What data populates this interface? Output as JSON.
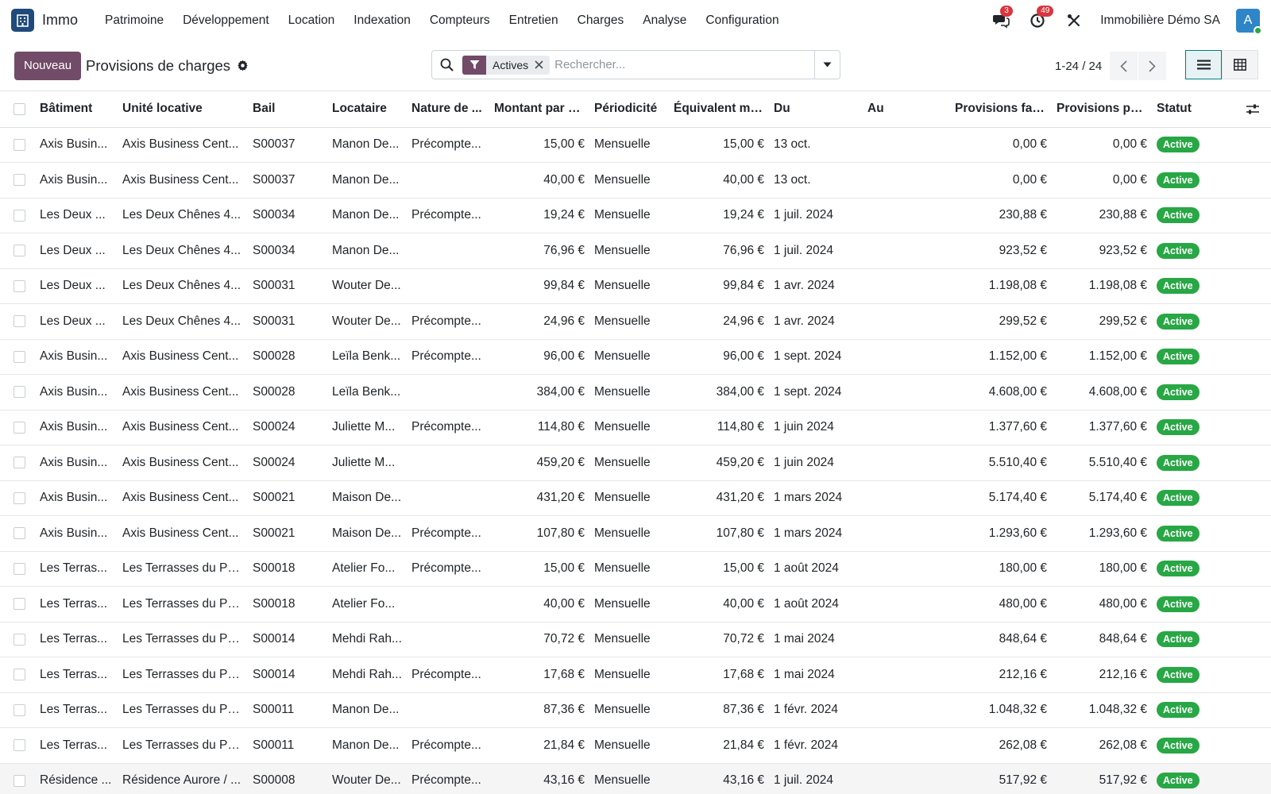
{
  "app": {
    "name": "Immo",
    "icon": "building-icon",
    "brand_color": "#1f4a7c"
  },
  "menu": [
    "Patrimoine",
    "Développement",
    "Location",
    "Indexation",
    "Compteurs",
    "Entretien",
    "Charges",
    "Analyse",
    "Configuration"
  ],
  "nav": {
    "messages_count": "3",
    "activities_count": "49",
    "company": "Immobilière Démo SA",
    "avatar_letter": "A"
  },
  "control": {
    "new_label": "Nouveau",
    "title": "Provisions de charges",
    "facet_label": "Actives",
    "search_placeholder": "Rechercher...",
    "pager": "1-24 / 24"
  },
  "colors": {
    "primary": "#714b67",
    "success": "#28a745",
    "danger": "#d9363e",
    "accent": "#017e84"
  },
  "table": {
    "columns": [
      "Bâtiment",
      "Unité locative",
      "Bail",
      "Locataire",
      "Nature de ...",
      "Montant par p...",
      "Périodicité",
      "Équivalent me...",
      "Du",
      "Au",
      "Provisions fac...",
      "Provisions pa...",
      "Statut"
    ],
    "rows": [
      [
        "Axis Busin...",
        "Axis Business Cent...",
        "S00037",
        "Manon De...",
        "Précompte...",
        "15,00 €",
        "Mensuelle",
        "15,00 €",
        "13 oct.",
        "",
        "0,00 €",
        "0,00 €",
        "Active"
      ],
      [
        "Axis Busin...",
        "Axis Business Cent...",
        "S00037",
        "Manon De...",
        "",
        "40,00 €",
        "Mensuelle",
        "40,00 €",
        "13 oct.",
        "",
        "0,00 €",
        "0,00 €",
        "Active"
      ],
      [
        "Les Deux ...",
        "Les Deux Chênes 4...",
        "S00034",
        "Manon De...",
        "Précompte...",
        "19,24 €",
        "Mensuelle",
        "19,24 €",
        "1 juil. 2024",
        "",
        "230,88 €",
        "230,88 €",
        "Active"
      ],
      [
        "Les Deux ...",
        "Les Deux Chênes 4...",
        "S00034",
        "Manon De...",
        "",
        "76,96 €",
        "Mensuelle",
        "76,96 €",
        "1 juil. 2024",
        "",
        "923,52 €",
        "923,52 €",
        "Active"
      ],
      [
        "Les Deux ...",
        "Les Deux Chênes 4...",
        "S00031",
        "Wouter De...",
        "",
        "99,84 €",
        "Mensuelle",
        "99,84 €",
        "1 avr. 2024",
        "",
        "1.198,08 €",
        "1.198,08 €",
        "Active"
      ],
      [
        "Les Deux ...",
        "Les Deux Chênes 4...",
        "S00031",
        "Wouter De...",
        "Précompte...",
        "24,96 €",
        "Mensuelle",
        "24,96 €",
        "1 avr. 2024",
        "",
        "299,52 €",
        "299,52 €",
        "Active"
      ],
      [
        "Axis Busin...",
        "Axis Business Cent...",
        "S00028",
        "Leïla Benk...",
        "Précompte...",
        "96,00 €",
        "Mensuelle",
        "96,00 €",
        "1 sept. 2024",
        "",
        "1.152,00 €",
        "1.152,00 €",
        "Active"
      ],
      [
        "Axis Busin...",
        "Axis Business Cent...",
        "S00028",
        "Leïla Benk...",
        "",
        "384,00 €",
        "Mensuelle",
        "384,00 €",
        "1 sept. 2024",
        "",
        "4.608,00 €",
        "4.608,00 €",
        "Active"
      ],
      [
        "Axis Busin...",
        "Axis Business Cent...",
        "S00024",
        "Juliette M...",
        "Précompte...",
        "114,80 €",
        "Mensuelle",
        "114,80 €",
        "1 juin 2024",
        "",
        "1.377,60 €",
        "1.377,60 €",
        "Active"
      ],
      [
        "Axis Busin...",
        "Axis Business Cent...",
        "S00024",
        "Juliette M...",
        "",
        "459,20 €",
        "Mensuelle",
        "459,20 €",
        "1 juin 2024",
        "",
        "5.510,40 €",
        "5.510,40 €",
        "Active"
      ],
      [
        "Axis Busin...",
        "Axis Business Cent...",
        "S00021",
        "Maison De...",
        "",
        "431,20 €",
        "Mensuelle",
        "431,20 €",
        "1 mars 2024",
        "",
        "5.174,40 €",
        "5.174,40 €",
        "Active"
      ],
      [
        "Axis Busin...",
        "Axis Business Cent...",
        "S00021",
        "Maison De...",
        "Précompte...",
        "107,80 €",
        "Mensuelle",
        "107,80 €",
        "1 mars 2024",
        "",
        "1.293,60 €",
        "1.293,60 €",
        "Active"
      ],
      [
        "Les Terras...",
        "Les Terrasses du Pa...",
        "S00018",
        "Atelier Fo...",
        "Précompte...",
        "15,00 €",
        "Mensuelle",
        "15,00 €",
        "1 août 2024",
        "",
        "180,00 €",
        "180,00 €",
        "Active"
      ],
      [
        "Les Terras...",
        "Les Terrasses du Pa...",
        "S00018",
        "Atelier Fo...",
        "",
        "40,00 €",
        "Mensuelle",
        "40,00 €",
        "1 août 2024",
        "",
        "480,00 €",
        "480,00 €",
        "Active"
      ],
      [
        "Les Terras...",
        "Les Terrasses du Pa...",
        "S00014",
        "Mehdi Rah...",
        "",
        "70,72 €",
        "Mensuelle",
        "70,72 €",
        "1 mai 2024",
        "",
        "848,64 €",
        "848,64 €",
        "Active"
      ],
      [
        "Les Terras...",
        "Les Terrasses du Pa...",
        "S00014",
        "Mehdi Rah...",
        "Précompte...",
        "17,68 €",
        "Mensuelle",
        "17,68 €",
        "1 mai 2024",
        "",
        "212,16 €",
        "212,16 €",
        "Active"
      ],
      [
        "Les Terras...",
        "Les Terrasses du Pa...",
        "S00011",
        "Manon De...",
        "",
        "87,36 €",
        "Mensuelle",
        "87,36 €",
        "1 févr. 2024",
        "",
        "1.048,32 €",
        "1.048,32 €",
        "Active"
      ],
      [
        "Les Terras...",
        "Les Terrasses du Pa...",
        "S00011",
        "Manon De...",
        "Précompte...",
        "21,84 €",
        "Mensuelle",
        "21,84 €",
        "1 févr. 2024",
        "",
        "262,08 €",
        "262,08 €",
        "Active"
      ],
      [
        "Résidence ...",
        "Résidence Aurore / ...",
        "S00008",
        "Wouter De...",
        "Précompte...",
        "43,16 €",
        "Mensuelle",
        "43,16 €",
        "1 juil. 2024",
        "",
        "517,92 €",
        "517,92 €",
        "Active"
      ]
    ]
  }
}
